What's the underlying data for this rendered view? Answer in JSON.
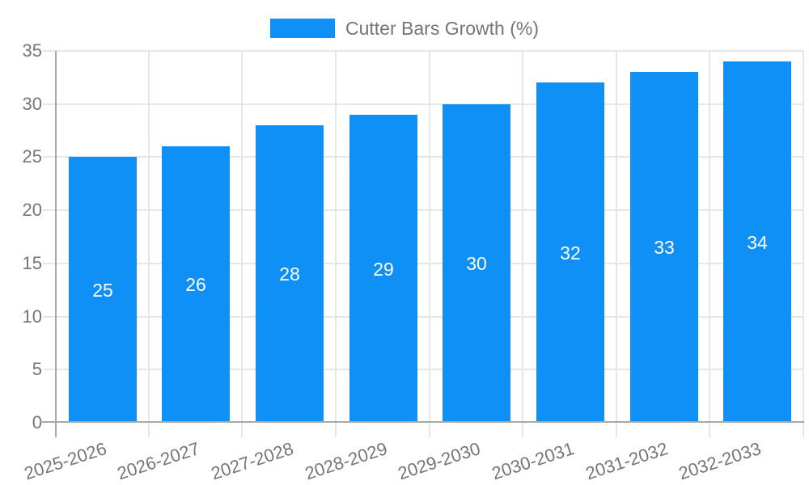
{
  "legend": {
    "label": "Cutter Bars Growth (%)"
  },
  "chart_data": {
    "type": "bar",
    "title": "",
    "xlabel": "",
    "ylabel": "",
    "categories": [
      "2025-2026",
      "2026-2027",
      "2027-2028",
      "2028-2029",
      "2029-2030",
      "2030-2031",
      "2031-2032",
      "2032-2033"
    ],
    "series": [
      {
        "name": "Cutter Bars Growth (%)",
        "values": [
          25,
          26,
          28,
          29,
          30,
          32,
          33,
          34
        ]
      }
    ],
    "value_labels_visible": true,
    "ylim": [
      0,
      35
    ],
    "yticks": [
      0,
      5,
      10,
      15,
      20,
      25,
      30,
      35
    ],
    "grid": true,
    "legend_position": "top",
    "colors": {
      "bar": "#0e90f6",
      "value_label": "#ffffff",
      "axis_text": "#757575",
      "grid_line": "#e6e6e6",
      "axis_line": "#a8a8a8",
      "background": "#ffffff"
    }
  }
}
